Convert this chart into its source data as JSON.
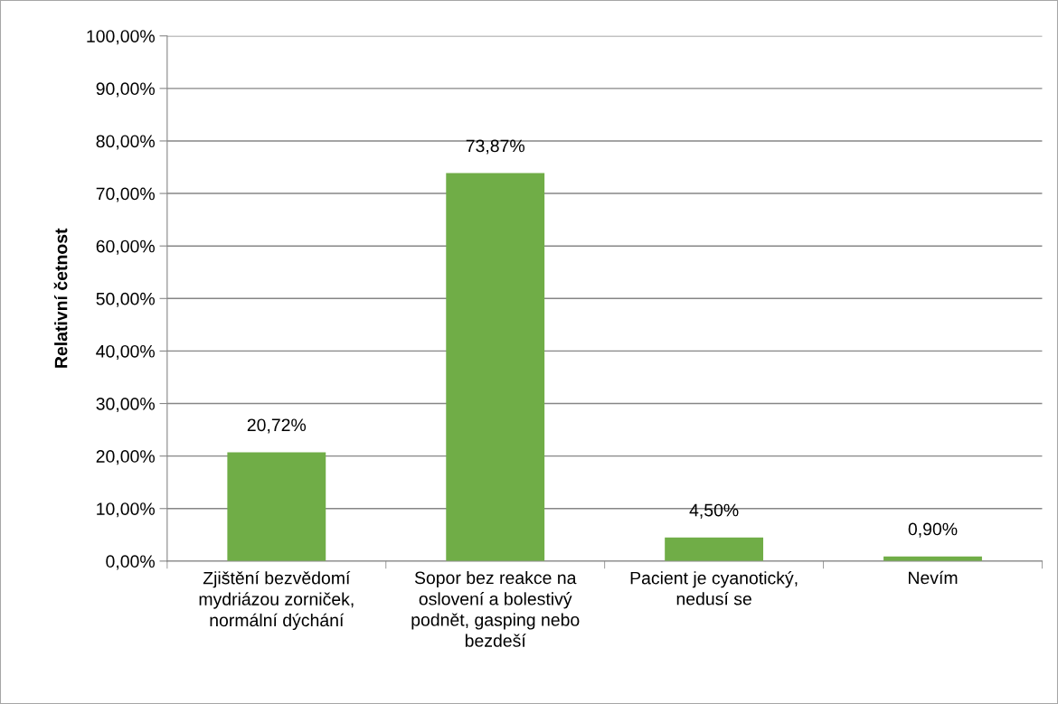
{
  "chart_data": {
    "type": "bar",
    "ylabel": "Relativní četnost",
    "categories": [
      "Zjištění bezvědomí\nmydriázou zorniček,\nnormální dýchání",
      "Sopor bez reakce na\noslovení a bolestivý\npodnět, gasping nebo\nbezdeší",
      "Pacient je cyanotický,\nnedusí se",
      "Nevím"
    ],
    "values": [
      20.72,
      73.87,
      4.5,
      0.9
    ],
    "value_labels": [
      "20,72%",
      "73,87%",
      "4,50%",
      "0,90%"
    ],
    "color": "#70ad47",
    "ylim": [
      0,
      100
    ],
    "yticks": [
      {
        "value": 0,
        "label": "0,00%"
      },
      {
        "value": 10,
        "label": "10,00%"
      },
      {
        "value": 20,
        "label": "20,00%"
      },
      {
        "value": 30,
        "label": "30,00%"
      },
      {
        "value": 40,
        "label": "40,00%"
      },
      {
        "value": 50,
        "label": "50,00%"
      },
      {
        "value": 60,
        "label": "60,00%"
      },
      {
        "value": 70,
        "label": "70,00%"
      },
      {
        "value": 80,
        "label": "80,00%"
      },
      {
        "value": 90,
        "label": "90,00%"
      },
      {
        "value": 100,
        "label": "100,00%"
      }
    ],
    "grid": "y",
    "legend": false
  }
}
